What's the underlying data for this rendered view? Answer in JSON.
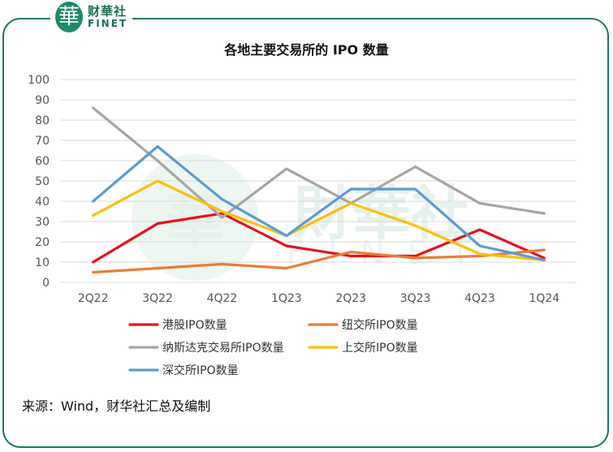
{
  "brand": {
    "mark": "華",
    "name_cn": "财華社",
    "name_en": "FINET"
  },
  "watermark": {
    "mark": "華",
    "name_cn": "財華社",
    "name_en": "FINET"
  },
  "source_note": "来源：Wind，财华社汇总及编制",
  "colors": {
    "frame": "#1a7a5e",
    "brand": "#1d8a69"
  },
  "chart_data": {
    "type": "line",
    "title": "各地主要交易所的 IPO 数量",
    "categories": [
      "2Q22",
      "3Q22",
      "4Q22",
      "1Q23",
      "2Q23",
      "3Q23",
      "4Q23",
      "1Q24"
    ],
    "ylim": [
      0,
      100
    ],
    "yticks": [
      0,
      10,
      20,
      30,
      40,
      50,
      60,
      70,
      80,
      90,
      100
    ],
    "grid": true,
    "legend_position": "bottom",
    "series": [
      {
        "name": "港股IPO数量",
        "color": "#e8121a",
        "values": [
          10,
          29,
          34,
          18,
          13,
          13,
          26,
          12
        ]
      },
      {
        "name": "纽交所IPO数量",
        "color": "#ea7d35",
        "values": [
          5,
          7,
          9,
          7,
          15,
          12,
          13,
          16
        ]
      },
      {
        "name": "纳斯达克交易所IPO数量",
        "color": "#a6a6a6",
        "values": [
          86,
          60,
          32,
          56,
          39,
          57,
          39,
          34
        ]
      },
      {
        "name": "上交所IPO数量",
        "color": "#fbbf0e",
        "values": [
          33,
          50,
          35,
          23,
          39,
          28,
          14,
          11
        ]
      },
      {
        "name": "深交所IPO数量",
        "color": "#5b9bd5",
        "values": [
          40,
          67,
          41,
          23,
          46,
          46,
          18,
          11
        ]
      }
    ]
  }
}
